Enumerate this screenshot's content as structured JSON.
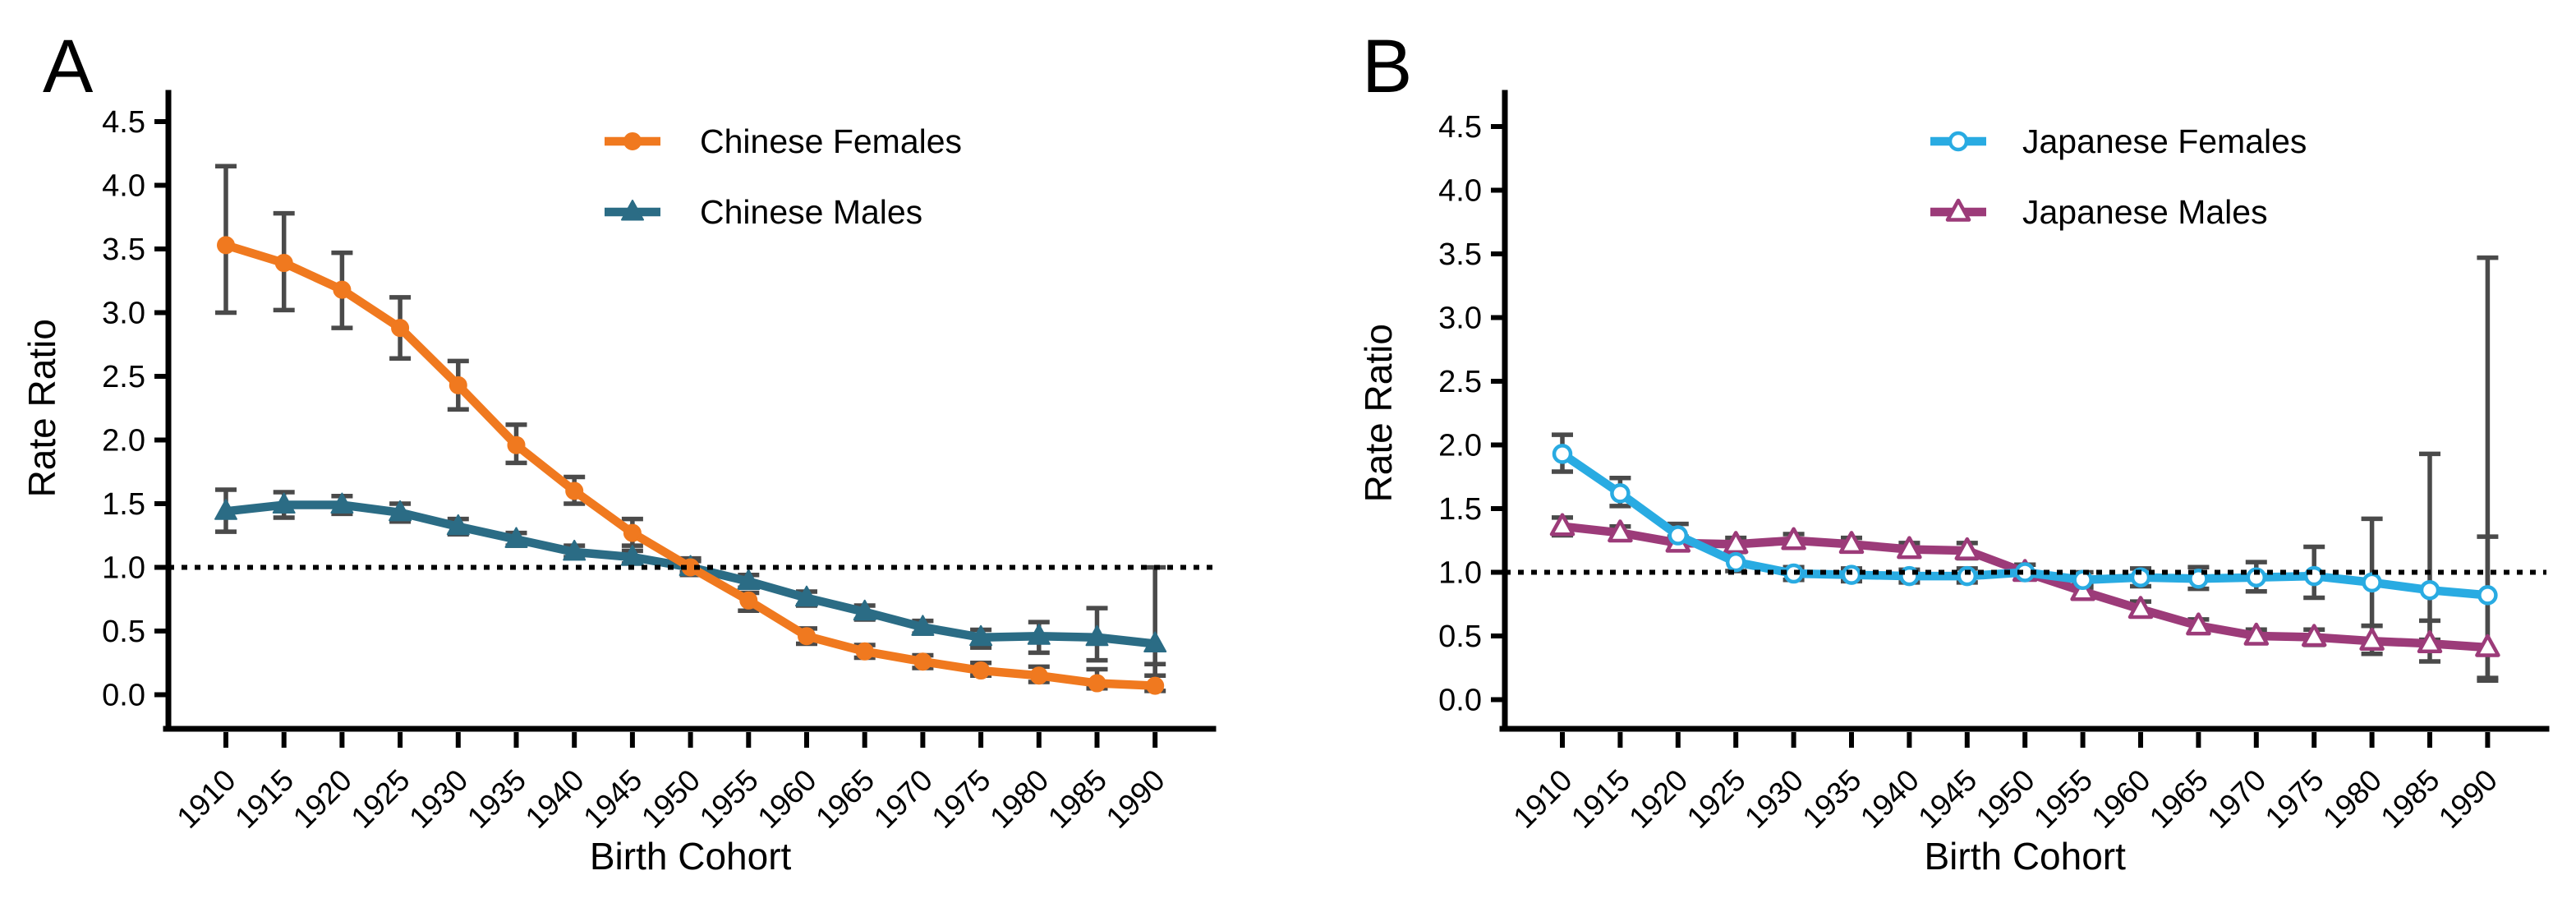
{
  "figure": {
    "background": "#ffffff",
    "error_bar_color": "#4a4a4a",
    "reference_line_value": 1.0
  },
  "chart_data": [
    {
      "type": "line",
      "panel_label": "A",
      "title": "",
      "xlabel": "Birth Cohort",
      "ylabel": "Rate Ratio",
      "ylim": [
        0,
        4.5
      ],
      "grid": false,
      "legend_position": "top-right-inside",
      "reference_line": 1.0,
      "xtick_labels": [
        "1910",
        "1915",
        "1920",
        "1925",
        "1930",
        "1935",
        "1940",
        "1945",
        "1950",
        "1955",
        "1960",
        "1965",
        "1970",
        "1975",
        "1980",
        "1985",
        "1990"
      ],
      "ytick_labels": [
        "0.0",
        "0.5",
        "1.0",
        "1.5",
        "2.0",
        "2.5",
        "3.0",
        "3.5",
        "4.0",
        "4.5"
      ],
      "x": [
        1910,
        1915,
        1920,
        1925,
        1930,
        1935,
        1940,
        1945,
        1950,
        1955,
        1960,
        1965,
        1970,
        1975,
        1980,
        1985,
        1990
      ],
      "series": [
        {
          "name": "Chinese Females",
          "color": "#F0791F",
          "marker": "circle",
          "marker_style": "filled",
          "values": [
            3.53,
            3.39,
            3.18,
            2.88,
            2.43,
            1.96,
            1.6,
            1.27,
            1.0,
            0.74,
            0.46,
            0.34,
            0.26,
            0.19,
            0.15,
            0.09,
            0.07
          ],
          "ci_low": [
            3.0,
            3.02,
            2.88,
            2.64,
            2.24,
            1.82,
            1.5,
            1.17,
            0.94,
            0.66,
            0.4,
            0.29,
            0.21,
            0.15,
            0.1,
            0.05,
            0.03
          ],
          "ci_high": [
            4.15,
            3.78,
            3.47,
            3.12,
            2.62,
            2.12,
            1.71,
            1.38,
            1.07,
            0.8,
            0.52,
            0.39,
            0.31,
            0.25,
            0.22,
            0.2,
            0.24
          ]
        },
        {
          "name": "Chinese Males",
          "color": "#2B6C85",
          "marker": "triangle",
          "marker_style": "filled",
          "values": [
            1.44,
            1.49,
            1.49,
            1.43,
            1.32,
            1.22,
            1.12,
            1.08,
            1.0,
            0.89,
            0.76,
            0.65,
            0.53,
            0.45,
            0.46,
            0.45,
            0.4
          ],
          "ci_low": [
            1.28,
            1.39,
            1.42,
            1.36,
            1.26,
            1.17,
            1.08,
            1.03,
            0.96,
            0.84,
            0.7,
            0.59,
            0.48,
            0.37,
            0.33,
            0.27,
            0.15
          ],
          "ci_high": [
            1.61,
            1.59,
            1.56,
            1.5,
            1.38,
            1.27,
            1.17,
            1.13,
            1.05,
            0.94,
            0.81,
            0.7,
            0.58,
            0.51,
            0.57,
            0.68,
            1.0
          ]
        }
      ]
    },
    {
      "type": "line",
      "panel_label": "B",
      "title": "",
      "xlabel": "Birth Cohort",
      "ylabel": "Rate Ratio",
      "ylim": [
        0,
        4.5
      ],
      "grid": false,
      "legend_position": "top-right-inside",
      "reference_line": 1.0,
      "xtick_labels": [
        "1910",
        "1915",
        "1920",
        "1925",
        "1930",
        "1935",
        "1940",
        "1945",
        "1950",
        "1955",
        "1960",
        "1965",
        "1970",
        "1975",
        "1980",
        "1985",
        "1990"
      ],
      "ytick_labels": [
        "0.0",
        "0.5",
        "1.0",
        "1.5",
        "2.0",
        "2.5",
        "3.0",
        "3.5",
        "4.0",
        "4.5"
      ],
      "x": [
        1910,
        1915,
        1920,
        1925,
        1930,
        1935,
        1940,
        1945,
        1950,
        1955,
        1960,
        1965,
        1970,
        1975,
        1980,
        1985,
        1990
      ],
      "series": [
        {
          "name": "Japanese Females",
          "color": "#29ABE2",
          "marker": "circle",
          "marker_style": "open",
          "values": [
            1.93,
            1.62,
            1.29,
            1.08,
            0.99,
            0.98,
            0.97,
            0.97,
            1.0,
            0.94,
            0.96,
            0.95,
            0.96,
            0.97,
            0.92,
            0.86,
            0.82
          ],
          "ci_low": [
            1.79,
            1.52,
            1.19,
            1.01,
            0.94,
            0.93,
            0.92,
            0.92,
            0.95,
            0.88,
            0.89,
            0.87,
            0.85,
            0.8,
            0.58,
            0.47,
            0.17
          ],
          "ci_high": [
            2.08,
            1.74,
            1.38,
            1.16,
            1.04,
            1.03,
            1.02,
            1.03,
            1.06,
            1.0,
            1.03,
            1.04,
            1.08,
            1.2,
            1.42,
            1.93,
            3.47
          ]
        },
        {
          "name": "Japanese Males",
          "color": "#9C3B79",
          "marker": "triangle",
          "marker_style": "open",
          "values": [
            1.36,
            1.31,
            1.23,
            1.22,
            1.25,
            1.22,
            1.18,
            1.17,
            1.0,
            0.85,
            0.71,
            0.58,
            0.5,
            0.49,
            0.46,
            0.44,
            0.41
          ],
          "ci_low": [
            1.29,
            1.26,
            1.18,
            1.17,
            1.2,
            1.17,
            1.13,
            1.11,
            0.95,
            0.8,
            0.66,
            0.53,
            0.45,
            0.43,
            0.36,
            0.3,
            0.15
          ],
          "ci_high": [
            1.43,
            1.36,
            1.28,
            1.27,
            1.3,
            1.27,
            1.23,
            1.23,
            1.06,
            0.91,
            0.77,
            0.63,
            0.55,
            0.55,
            0.58,
            0.62,
            1.28
          ]
        }
      ]
    }
  ]
}
